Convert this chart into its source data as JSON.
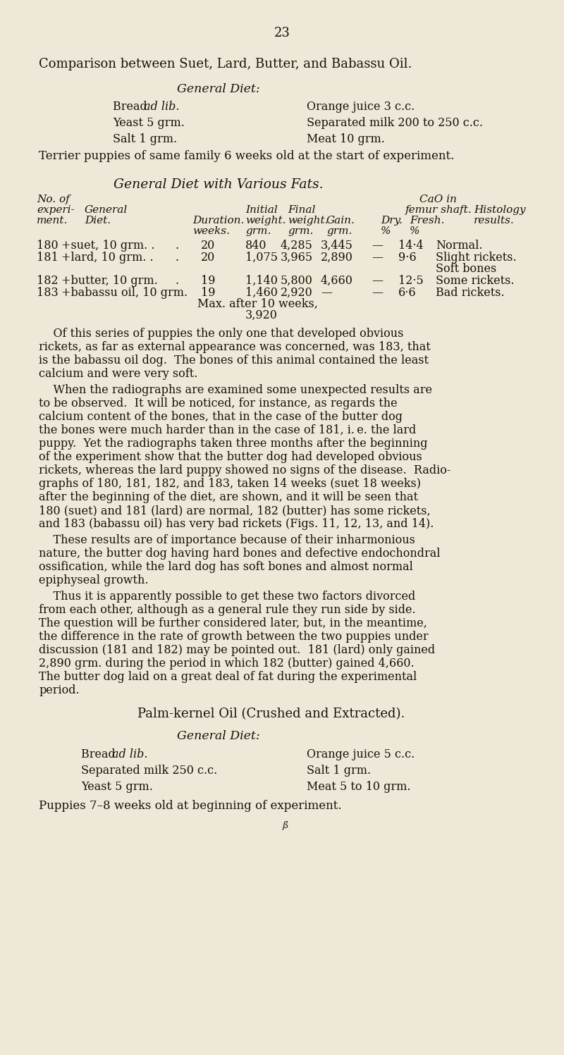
{
  "bg_color": "#ede8d8",
  "text_color": "#1a1008",
  "page_number": "23",
  "title": "Comparison between Suet, Lard, Butter, and Babassu Oil.",
  "s1_heading": "General Diet:",
  "s1_left": [
    "Bread ad lib.",
    "Yeast 5 grm.",
    "Salt 1 grm."
  ],
  "s1_left_italic": [
    true,
    false,
    false
  ],
  "s1_right": [
    "Orange juice 3 c.c.",
    "Separated milk 200 to 250 c.c.",
    "Meat 10 grm."
  ],
  "s1_footer": "Terrier puppies of same family 6 weeks old at the start of experiment.",
  "table_heading": "General Diet with Various Fats.",
  "s2_title": "Palm-kernel Oil (Crushed and Extracted).",
  "s2_heading": "General Diet:",
  "s2_left": [
    "Bread ad lib.",
    "Separated milk 250 c.c.",
    "Yeast 5 grm."
  ],
  "s2_left_italic": [
    true,
    false,
    false
  ],
  "s2_right": [
    "Orange juice 5 c.c.",
    "Salt 1 grm.",
    "Meat 5 to 10 grm."
  ],
  "s2_footer": "Puppies 7–8 weeks old at beginning of experiment."
}
